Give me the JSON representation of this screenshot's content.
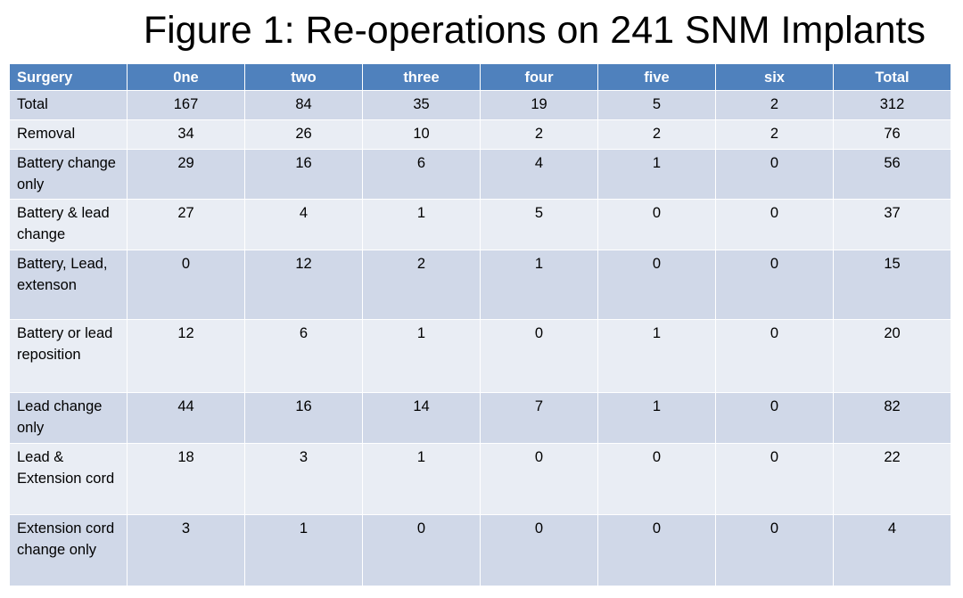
{
  "title": "Figure 1: Re-operations on 241 SNM Implants",
  "table": {
    "headers": [
      "Surgery",
      "0ne",
      "two",
      "three",
      "four",
      "five",
      "six",
      "Total"
    ],
    "rows": [
      {
        "label": "Total",
        "values": [
          "167",
          "84",
          "35",
          "19",
          "5",
          "2",
          "312"
        ]
      },
      {
        "label": "Removal",
        "values": [
          "34",
          "26",
          "10",
          "2",
          "2",
          "2",
          "76"
        ]
      },
      {
        "label": "Battery change only",
        "values": [
          "29",
          "16",
          "6",
          "4",
          "1",
          "0",
          "56"
        ]
      },
      {
        "label": "Battery & lead change",
        "values": [
          "27",
          "4",
          "1",
          "5",
          "0",
          "0",
          "37"
        ]
      },
      {
        "label": "Battery, Lead, extenson",
        "values": [
          "0",
          "12",
          "2",
          "1",
          "0",
          "0",
          "15"
        ]
      },
      {
        "label": "Battery or lead reposition",
        "values": [
          "12",
          "6",
          "1",
          "0",
          "1",
          "0",
          "20"
        ]
      },
      {
        "label": "Lead change only",
        "values": [
          "44",
          "16",
          "14",
          "7",
          "1",
          "0",
          "82"
        ]
      },
      {
        "label": "Lead & Extension cord",
        "values": [
          "18",
          "3",
          "1",
          "0",
          "0",
          "0",
          "22"
        ]
      },
      {
        "label": "Extension cord change only",
        "values": [
          "3",
          "1",
          "0",
          "0",
          "0",
          "0",
          "4"
        ]
      }
    ]
  },
  "colors": {
    "header_bg": "#4f81bd",
    "row_dark": "#d0d8e8",
    "row_light": "#e9edf4"
  }
}
